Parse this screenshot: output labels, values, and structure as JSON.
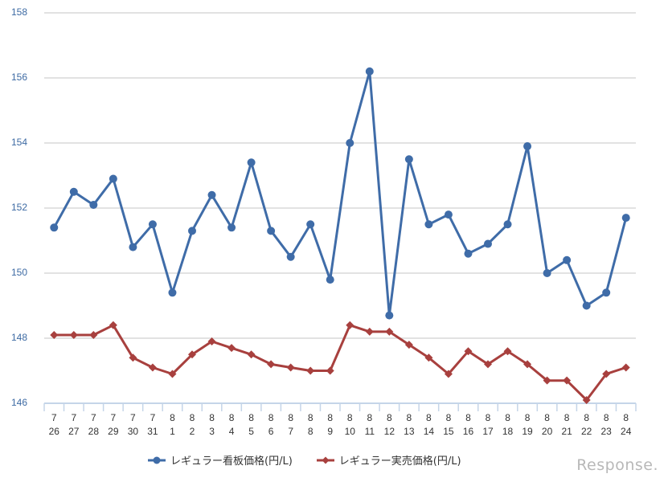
{
  "chart_data": {
    "type": "line",
    "title": "",
    "xlabel": "",
    "ylabel": "",
    "ylim": [
      146,
      158
    ],
    "yticks": [
      146,
      148,
      150,
      152,
      154,
      156,
      158
    ],
    "grid": true,
    "legend_position": "bottom",
    "categories": [
      "7/26",
      "7/27",
      "7/28",
      "7/29",
      "7/30",
      "7/31",
      "8/1",
      "8/2",
      "8/3",
      "8/4",
      "8/5",
      "8/6",
      "8/7",
      "8/8",
      "8/9",
      "8/10",
      "8/11",
      "8/12",
      "8/13",
      "8/14",
      "8/15",
      "8/16",
      "8/17",
      "8/18",
      "8/19",
      "8/20",
      "8/21",
      "8/22",
      "8/23",
      "8/24"
    ],
    "category_labels": [
      [
        "7",
        "26"
      ],
      [
        "7",
        "27"
      ],
      [
        "7",
        "28"
      ],
      [
        "7",
        "29"
      ],
      [
        "7",
        "30"
      ],
      [
        "7",
        "31"
      ],
      [
        "8",
        "1"
      ],
      [
        "8",
        "2"
      ],
      [
        "8",
        "3"
      ],
      [
        "8",
        "4"
      ],
      [
        "8",
        "5"
      ],
      [
        "8",
        "6"
      ],
      [
        "8",
        "7"
      ],
      [
        "8",
        "8"
      ],
      [
        "8",
        "9"
      ],
      [
        "8",
        "10"
      ],
      [
        "8",
        "11"
      ],
      [
        "8",
        "12"
      ],
      [
        "8",
        "13"
      ],
      [
        "8",
        "14"
      ],
      [
        "8",
        "15"
      ],
      [
        "8",
        "16"
      ],
      [
        "8",
        "17"
      ],
      [
        "8",
        "18"
      ],
      [
        "8",
        "19"
      ],
      [
        "8",
        "20"
      ],
      [
        "8",
        "21"
      ],
      [
        "8",
        "22"
      ],
      [
        "8",
        "23"
      ],
      [
        "8",
        "24"
      ]
    ],
    "series": [
      {
        "name": "レギュラー看板価格(円/L)",
        "color": "#3f6ca8",
        "marker": "circle",
        "values": [
          151.4,
          152.5,
          152.1,
          152.9,
          150.8,
          151.5,
          149.4,
          151.3,
          152.4,
          151.4,
          153.4,
          151.3,
          150.5,
          151.5,
          149.8,
          154.0,
          156.2,
          148.7,
          153.5,
          151.5,
          151.8,
          150.6,
          150.9,
          151.5,
          153.9,
          150.0,
          150.4,
          149.0,
          149.4,
          151.7
        ]
      },
      {
        "name": "レギュラー実売価格(円/L)",
        "color": "#a8403e",
        "marker": "diamond",
        "values": [
          148.1,
          148.1,
          148.1,
          148.4,
          147.4,
          147.1,
          146.9,
          147.5,
          147.9,
          147.7,
          147.5,
          147.2,
          147.1,
          147.0,
          147.0,
          148.4,
          148.2,
          148.2,
          147.8,
          147.4,
          146.9,
          147.6,
          147.2,
          147.6,
          147.2,
          146.7,
          146.7,
          146.1,
          146.9,
          147.1
        ]
      }
    ]
  },
  "legend": {
    "items": [
      {
        "label": "レギュラー看板価格(円/L)"
      },
      {
        "label": "レギュラー実売価格(円/L)"
      }
    ]
  },
  "watermark": {
    "text": "Response."
  },
  "colors": {
    "grid": "#d9d9d9",
    "axis": "#c5d5e8",
    "ytick": "#3d6aa3"
  }
}
